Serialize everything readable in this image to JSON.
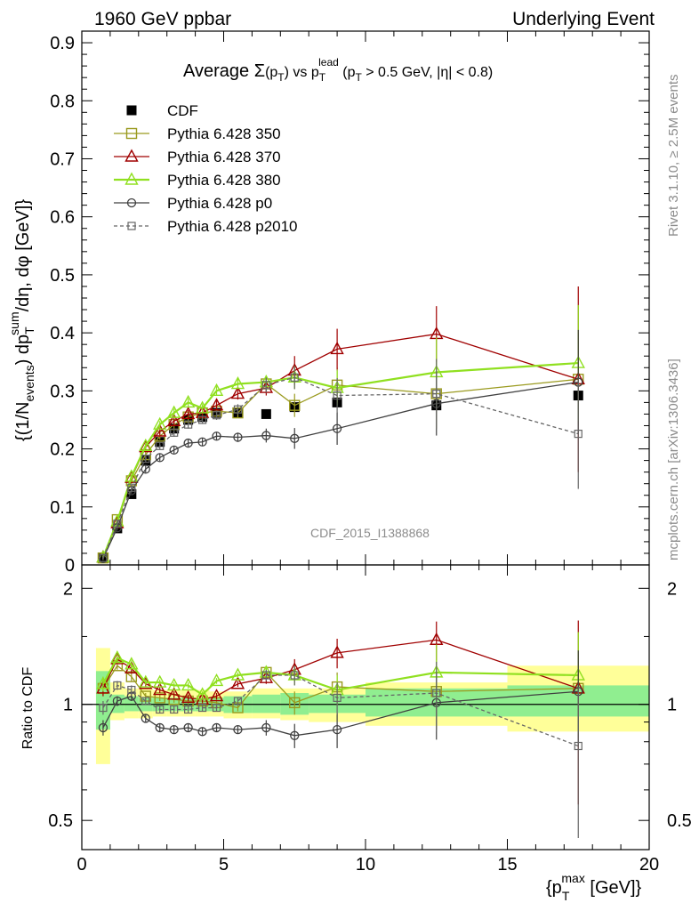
{
  "header": {
    "left": "1960 GeV ppbar",
    "right": "Underlying Event"
  },
  "side_labels": {
    "rivet": "Rivet 3.1.10, ≥ 2.5M events",
    "mcplots": "mcplots.cern.ch [arXiv:1306.3436]"
  },
  "watermark": "CDF_2015_I1388868",
  "chart_data": [
    {
      "type": "line",
      "title": "Average Σ(p_T) vs p_T^lead (p_T > 0.5 GeV, |η| < 0.8)",
      "ylabel": "{(1/N_events) dp_T^sum/dη, dφ [GeV]}",
      "ylim": [
        0,
        0.92
      ],
      "yticks": [
        "0",
        "0.1",
        "0.2",
        "0.3",
        "0.4",
        "0.5",
        "0.6",
        "0.7",
        "0.8",
        "0.9"
      ],
      "xlim": [
        0,
        20
      ],
      "grid": false,
      "legend_position": "top-left",
      "series": [
        {
          "name": "CDF",
          "color": "#000000",
          "marker": "filled-square",
          "x": [
            0.75,
            1.25,
            1.75,
            2.25,
            2.75,
            3.25,
            3.75,
            4.25,
            4.75,
            5.5,
            6.5,
            7.5,
            9.0,
            12.5,
            17.5
          ],
          "y": [
            0.012,
            0.063,
            0.122,
            0.18,
            0.212,
            0.235,
            0.25,
            0.255,
            0.262,
            0.262,
            0.26,
            0.272,
            0.28,
            0.275,
            0.292
          ]
        },
        {
          "name": "Pythia 6.428 350",
          "color": "#9a9a1e",
          "marker": "open-square",
          "x": [
            0.75,
            1.25,
            1.75,
            2.25,
            2.75,
            3.25,
            3.75,
            4.25,
            4.75,
            5.5,
            6.5,
            7.5,
            9.0,
            12.5,
            17.5
          ],
          "y": [
            0.012,
            0.078,
            0.145,
            0.19,
            0.222,
            0.242,
            0.255,
            0.262,
            0.265,
            0.262,
            0.312,
            0.275,
            0.31,
            0.295,
            0.32
          ],
          "err": [
            0.003,
            0.005,
            0.005,
            0.006,
            0.006,
            0.007,
            0.007,
            0.007,
            0.008,
            0.009,
            0.013,
            0.02,
            0.03,
            0.06,
            0.08
          ]
        },
        {
          "name": "Pythia 6.428 370",
          "color": "#a00000",
          "marker": "open-triangle",
          "x": [
            0.75,
            1.25,
            1.75,
            2.25,
            2.75,
            3.25,
            3.75,
            4.25,
            4.75,
            5.5,
            6.5,
            7.5,
            9.0,
            12.5,
            17.5
          ],
          "y": [
            0.013,
            0.072,
            0.15,
            0.203,
            0.23,
            0.248,
            0.26,
            0.262,
            0.275,
            0.295,
            0.305,
            0.335,
            0.372,
            0.398,
            0.32
          ],
          "err": [
            0.003,
            0.005,
            0.005,
            0.006,
            0.006,
            0.007,
            0.007,
            0.007,
            0.008,
            0.01,
            0.013,
            0.025,
            0.035,
            0.048,
            0.16
          ]
        },
        {
          "name": "Pythia 6.428 380",
          "color": "#90e020",
          "marker": "open-triangle",
          "x": [
            0.75,
            1.25,
            1.75,
            2.25,
            2.75,
            3.25,
            3.75,
            4.25,
            4.75,
            5.5,
            6.5,
            7.5,
            9.0,
            12.5,
            17.5
          ],
          "y": [
            0.013,
            0.075,
            0.152,
            0.205,
            0.242,
            0.262,
            0.28,
            0.27,
            0.3,
            0.312,
            0.315,
            0.323,
            0.305,
            0.332,
            0.348
          ],
          "err": [
            0.003,
            0.005,
            0.005,
            0.006,
            0.006,
            0.007,
            0.007,
            0.007,
            0.008,
            0.009,
            0.012,
            0.02,
            0.03,
            0.06,
            0.1
          ]
        },
        {
          "name": "Pythia 6.428 p0",
          "color": "#404040",
          "marker": "open-circle",
          "x": [
            0.75,
            1.25,
            1.75,
            2.25,
            2.75,
            3.25,
            3.75,
            4.25,
            4.75,
            5.5,
            6.5,
            7.5,
            9.0,
            12.5,
            17.5
          ],
          "y": [
            0.011,
            0.064,
            0.128,
            0.165,
            0.185,
            0.198,
            0.21,
            0.212,
            0.222,
            0.22,
            0.223,
            0.218,
            0.235,
            0.278,
            0.315
          ],
          "err": [
            0.003,
            0.005,
            0.005,
            0.006,
            0.006,
            0.006,
            0.006,
            0.007,
            0.007,
            0.008,
            0.012,
            0.018,
            0.028,
            0.055,
            0.09
          ]
        },
        {
          "name": "Pythia 6.428 p2010",
          "color": "#666666",
          "marker": "open-square-small",
          "dashed": true,
          "x": [
            0.75,
            1.25,
            1.75,
            2.25,
            2.75,
            3.25,
            3.75,
            4.25,
            4.75,
            5.5,
            6.5,
            7.5,
            9.0,
            12.5,
            17.5
          ],
          "y": [
            0.012,
            0.071,
            0.133,
            0.183,
            0.205,
            0.228,
            0.242,
            0.25,
            0.258,
            0.268,
            0.31,
            0.323,
            0.292,
            0.295,
            0.226
          ],
          "err": [
            0.003,
            0.005,
            0.005,
            0.006,
            0.006,
            0.007,
            0.007,
            0.007,
            0.008,
            0.009,
            0.013,
            0.02,
            0.03,
            0.06,
            0.095
          ]
        }
      ]
    },
    {
      "type": "line",
      "ylabel": "Ratio to CDF",
      "ylim": [
        0.42,
        2.3
      ],
      "yscale": "log",
      "yticks": [
        "0.5",
        "1",
        "2"
      ],
      "xlabel": "{p_T^max [GeV]}",
      "xlim": [
        0,
        20
      ],
      "xticks": [
        "0",
        "5",
        "10",
        "15",
        "20"
      ],
      "uncertainty_bands": {
        "edges": [
          0.5,
          1.0,
          1.5,
          2.0,
          2.5,
          3.0,
          3.5,
          4.0,
          4.5,
          5.0,
          6.0,
          7.0,
          8.0,
          10.0,
          15.0,
          20.0
        ],
        "inner": [
          [
            0.86,
            1.22
          ],
          [
            0.95,
            1.06
          ],
          [
            0.96,
            1.05
          ],
          [
            0.96,
            1.04
          ],
          [
            0.96,
            1.04
          ],
          [
            0.96,
            1.04
          ],
          [
            0.96,
            1.04
          ],
          [
            0.96,
            1.04
          ],
          [
            0.96,
            1.04
          ],
          [
            0.95,
            1.05
          ],
          [
            0.95,
            1.06
          ],
          [
            0.94,
            1.07
          ],
          [
            0.95,
            1.06
          ],
          [
            0.93,
            1.1
          ],
          [
            0.93,
            1.12
          ]
        ],
        "outer": [
          [
            0.7,
            1.4
          ],
          [
            0.91,
            1.14
          ],
          [
            0.92,
            1.1
          ],
          [
            0.92,
            1.1
          ],
          [
            0.93,
            1.09
          ],
          [
            0.93,
            1.09
          ],
          [
            0.93,
            1.09
          ],
          [
            0.93,
            1.09
          ],
          [
            0.93,
            1.08
          ],
          [
            0.92,
            1.08
          ],
          [
            0.92,
            1.1
          ],
          [
            0.91,
            1.1
          ],
          [
            0.9,
            1.1
          ],
          [
            0.88,
            1.14
          ],
          [
            0.85,
            1.26
          ]
        ],
        "inner_color": "#90ee90",
        "outer_color": "#ffff99"
      },
      "series": [
        {
          "name": "Pythia 6.428 350",
          "color": "#9a9a1e",
          "y": [
            1.1,
            1.26,
            1.18,
            1.05,
            1.04,
            1.03,
            1.02,
            1.02,
            1.01,
            0.98,
            1.21,
            1.01,
            1.11,
            1.08,
            1.1
          ],
          "err": [
            0.05,
            0.03,
            0.03,
            0.02,
            0.02,
            0.02,
            0.02,
            0.02,
            0.02,
            0.02,
            0.04,
            0.07,
            0.1,
            0.22,
            0.28
          ]
        },
        {
          "name": "Pythia 6.428 370",
          "color": "#a00000",
          "y": [
            1.1,
            1.31,
            1.24,
            1.13,
            1.09,
            1.06,
            1.04,
            1.03,
            1.05,
            1.13,
            1.17,
            1.23,
            1.36,
            1.47,
            1.1
          ],
          "err": [
            0.05,
            0.03,
            0.03,
            0.02,
            0.02,
            0.02,
            0.02,
            0.02,
            0.02,
            0.02,
            0.04,
            0.08,
            0.12,
            0.17,
            0.55
          ]
        },
        {
          "name": "Pythia 6.428 380",
          "color": "#90e020",
          "y": [
            1.13,
            1.32,
            1.27,
            1.14,
            1.14,
            1.12,
            1.12,
            1.06,
            1.15,
            1.19,
            1.21,
            1.19,
            1.09,
            1.21,
            1.19
          ],
          "err": [
            0.05,
            0.03,
            0.03,
            0.02,
            0.02,
            0.02,
            0.02,
            0.02,
            0.02,
            0.02,
            0.04,
            0.07,
            0.1,
            0.22,
            0.35
          ]
        },
        {
          "name": "Pythia 6.428 p0",
          "color": "#404040",
          "y": [
            0.87,
            1.02,
            1.05,
            0.92,
            0.87,
            0.86,
            0.87,
            0.85,
            0.87,
            0.86,
            0.87,
            0.83,
            0.86,
            1.01,
            1.08
          ],
          "err": [
            0.04,
            0.03,
            0.03,
            0.02,
            0.02,
            0.02,
            0.02,
            0.02,
            0.02,
            0.02,
            0.04,
            0.06,
            0.09,
            0.2,
            0.3
          ]
        },
        {
          "name": "Pythia 6.428 p2010",
          "color": "#666666",
          "dashed": true,
          "y": [
            0.98,
            1.12,
            1.09,
            1.02,
            0.97,
            0.97,
            0.97,
            0.98,
            0.98,
            1.02,
            1.19,
            1.19,
            1.04,
            1.07,
            0.78
          ],
          "err": [
            0.04,
            0.03,
            0.03,
            0.02,
            0.02,
            0.02,
            0.02,
            0.02,
            0.02,
            0.02,
            0.04,
            0.07,
            0.1,
            0.22,
            0.33
          ]
        }
      ]
    }
  ]
}
